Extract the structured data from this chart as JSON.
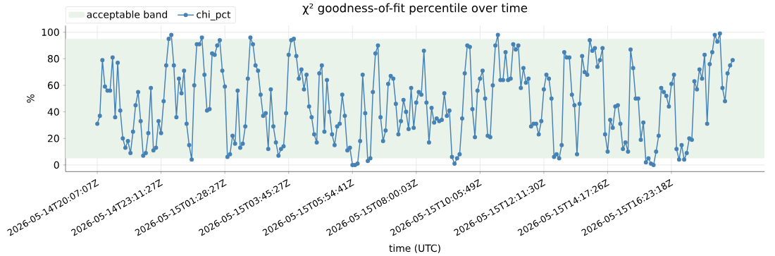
{
  "chart_data": {
    "type": "line",
    "title": "χ² goodness-of-fit percentile over time",
    "xlabel": "time (UTC)",
    "ylabel": "%",
    "categories": [
      "2026-05-14T20:07:07Z",
      null,
      null,
      null,
      null,
      null,
      null,
      null,
      null,
      null,
      null,
      null,
      null,
      null,
      null,
      null,
      null,
      null,
      null,
      null,
      null,
      null,
      null,
      null,
      null,
      "2026-05-14T23:11:27Z",
      null,
      null,
      null,
      null,
      null,
      null,
      null,
      null,
      null,
      null,
      null,
      null,
      null,
      null,
      null,
      null,
      null,
      null,
      null,
      null,
      null,
      null,
      null,
      null,
      "2026-05-15T01:28:27Z",
      null,
      null,
      null,
      null,
      null,
      null,
      null,
      null,
      null,
      null,
      null,
      null,
      null,
      null,
      null,
      null,
      null,
      null,
      null,
      null,
      null,
      null,
      null,
      null,
      "2026-05-15T03:45:27Z",
      null,
      null,
      null,
      null,
      null,
      null,
      null,
      null,
      null,
      null,
      null,
      null,
      null,
      null,
      null,
      null,
      null,
      null,
      null,
      null,
      null,
      null,
      null,
      null,
      "2026-05-15T05:54:41Z",
      null,
      null,
      null,
      null,
      null,
      null,
      null,
      null,
      null,
      null,
      null,
      null,
      null,
      null,
      null,
      null,
      null,
      null,
      null,
      null,
      null,
      null,
      null,
      null,
      "2026-05-15T08:00:03Z",
      null,
      null,
      null,
      null,
      null,
      null,
      null,
      null,
      null,
      null,
      null,
      null,
      null,
      null,
      null,
      null,
      null,
      null,
      null,
      null,
      null,
      null,
      null,
      null,
      "2026-05-15T10:05:49Z",
      null,
      null,
      null,
      null,
      null,
      null,
      null,
      null,
      null,
      null,
      null,
      null,
      null,
      null,
      null,
      null,
      null,
      null,
      null,
      null,
      null,
      null,
      null,
      null,
      "2026-05-15T12:11:30Z",
      null,
      null,
      null,
      null,
      null,
      null,
      null,
      null,
      null,
      null,
      null,
      null,
      null,
      null,
      null,
      null,
      null,
      null,
      null,
      null,
      null,
      null,
      null,
      null,
      "2026-05-15T14:17:26Z",
      null,
      null,
      null,
      null,
      null,
      null,
      null,
      null,
      null,
      null,
      null,
      null,
      null,
      null,
      null,
      null,
      null,
      null,
      null,
      null,
      null,
      null,
      null,
      null,
      "2026-05-15T16:23:18Z",
      null,
      null,
      null,
      null,
      null,
      null,
      null,
      null,
      null,
      null,
      null,
      null,
      null,
      null,
      null,
      null,
      null,
      null,
      null,
      null,
      null,
      null,
      null,
      null
    ],
    "series": [
      {
        "name": "chi_pct",
        "color": "#4682b4",
        "values": [
          31,
          37,
          79,
          59,
          56,
          56,
          81,
          36,
          77,
          41,
          20,
          13,
          18,
          9,
          25,
          45,
          55,
          33,
          7,
          9,
          24,
          58,
          11,
          13,
          33,
          24,
          48,
          75,
          95,
          98,
          75,
          36,
          65,
          54,
          71,
          31,
          15,
          4,
          60,
          91,
          91,
          96,
          68,
          41,
          42,
          84,
          83,
          90,
          94,
          71,
          59,
          6,
          8,
          22,
          16,
          56,
          13,
          16,
          29,
          65,
          96,
          91,
          75,
          71,
          53,
          37,
          39,
          12,
          57,
          29,
          17,
          7,
          12,
          14,
          39,
          83,
          94,
          95,
          82,
          65,
          72,
          57,
          68,
          44,
          36,
          23,
          17,
          69,
          75,
          25,
          64,
          40,
          23,
          15,
          29,
          31,
          53,
          37,
          11,
          13,
          0,
          0,
          1,
          18,
          68,
          39,
          3,
          5,
          55,
          84,
          90,
          36,
          18,
          26,
          61,
          67,
          65,
          46,
          23,
          33,
          49,
          40,
          27,
          58,
          28,
          47,
          55,
          53,
          86,
          47,
          17,
          43,
          32,
          35,
          33,
          34,
          54,
          37,
          41,
          6,
          1,
          5,
          8,
          35,
          69,
          90,
          89,
          42,
          21,
          56,
          65,
          71,
          50,
          22,
          21,
          60,
          90,
          98,
          64,
          64,
          85,
          64,
          65,
          91,
          87,
          90,
          58,
          73,
          62,
          65,
          29,
          31,
          31,
          23,
          33,
          57,
          68,
          65,
          50,
          6,
          8,
          5,
          15,
          85,
          81,
          81,
          53,
          45,
          8,
          46,
          82,
          70,
          68,
          94,
          86,
          88,
          74,
          79,
          88,
          23,
          10,
          34,
          28,
          44,
          45,
          31,
          12,
          17,
          10,
          87,
          73,
          50,
          50,
          19,
          32,
          2,
          5,
          1,
          0,
          10,
          22,
          58,
          55,
          52,
          44,
          61,
          68,
          12,
          4,
          15,
          4,
          9,
          20,
          19,
          63,
          57,
          72,
          65,
          83,
          31,
          76,
          85,
          98,
          93,
          99,
          58,
          48,
          69,
          75,
          79
        ]
      }
    ],
    "bands": [
      {
        "axis": "y",
        "from": 5,
        "to": 95,
        "label": "acceptable band",
        "color": "#eaf3ea"
      }
    ],
    "ylim": [
      -5,
      105
    ],
    "yticks": [
      0,
      20,
      40,
      60,
      80,
      100
    ],
    "grid": true,
    "legend": "top left",
    "marker": "circle"
  }
}
